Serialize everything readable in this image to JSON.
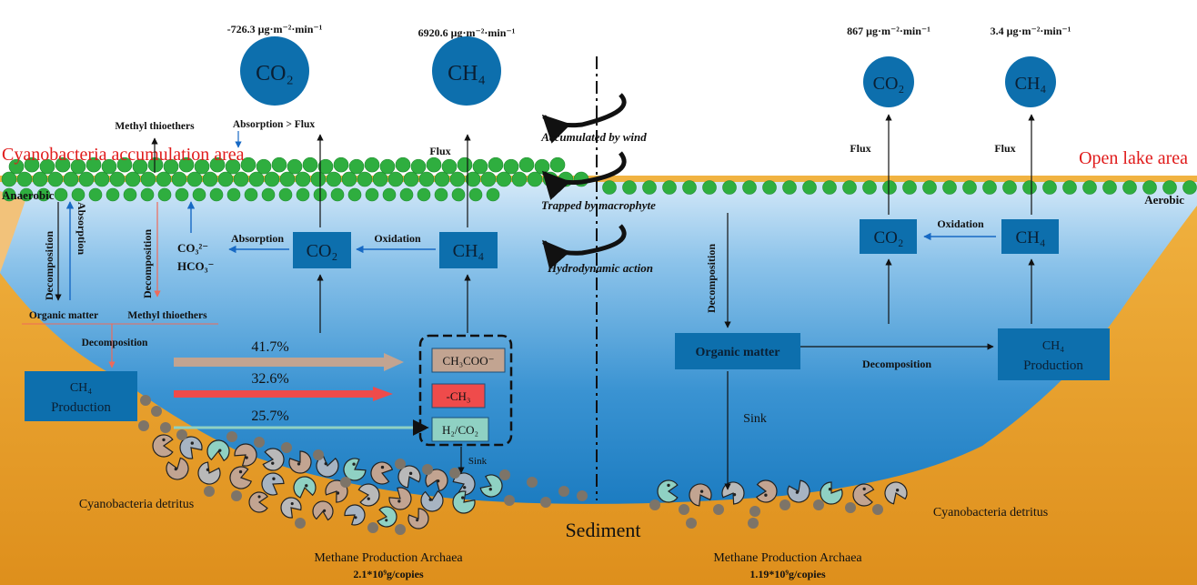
{
  "left": {
    "region": "Cyanobacteria accumulation area",
    "condition": "Anaerobic",
    "co2_flux": "-726.3 μg·m⁻²·min⁻¹",
    "ch4_flux": "6920.6 μg·m⁻²·min⁻¹",
    "co2": "CO₂",
    "ch4": "CH₄",
    "methyl_thioethers_top": "Methyl thioethers",
    "absorption_gt_flux": "Absorption > Flux",
    "flux": "Flux",
    "absorption": "Absorption",
    "oxidation": "Oxidation",
    "carbonate": "CO₃²⁻",
    "bicarbonate": "HCO₃⁻",
    "decomposition": "Decomposition",
    "absorption_vertical": "Absorption",
    "organic_matter": "Organic matter",
    "methyl_thioethers": "Methyl thioethers",
    "ch4_production_line1": "CH₄",
    "ch4_production_line2": "Production",
    "pathways": [
      {
        "percent": "41.7%",
        "substrate": "CH₃COO⁻",
        "color": "#c2a491"
      },
      {
        "percent": "32.6%",
        "substrate": "-CH₃",
        "color": "#ef4b4b"
      },
      {
        "percent": "25.7%",
        "substrate": "H₂/CO₂",
        "color": "#8fd1c3"
      }
    ],
    "sink": "Sink",
    "detritus": "Cyanobacteria detritus",
    "archaea": "Methane Production Archaea",
    "archaea_count": "2.1*10⁹g/copies"
  },
  "middle": {
    "wind": "Accumulated by wind",
    "macrophyte": "Trapped by macrophyte",
    "hydrodynamic": "Hydrodynamic action",
    "sediment": "Sediment"
  },
  "right": {
    "region": "Open lake area",
    "condition": "Aerobic",
    "co2_flux": "867 μg·m⁻²·min⁻¹",
    "ch4_flux": "3.4 μg·m⁻²·min⁻¹",
    "co2": "CO₂",
    "ch4": "CH₄",
    "flux": "Flux",
    "oxidation": "Oxidation",
    "decomposition_vertical": "Decomposition",
    "organic_matter": "Organic matter",
    "decomposition": "Decomposition",
    "ch4_production_line1": "CH₄",
    "ch4_production_line2": "Production",
    "sink": "Sink",
    "detritus": "Cyanobacteria detritus",
    "archaea": "Methane Production Archaea",
    "archaea_count": "1.19*10⁹g/copies"
  },
  "colors": {
    "box_blue": "#0d6fad",
    "water_top": "#cfe6f7",
    "water_bottom": "#1a7ec4",
    "sediment": "#e7a12a",
    "cyanobacteria": "#2fae3f",
    "accent_red": "#e01b1b"
  }
}
